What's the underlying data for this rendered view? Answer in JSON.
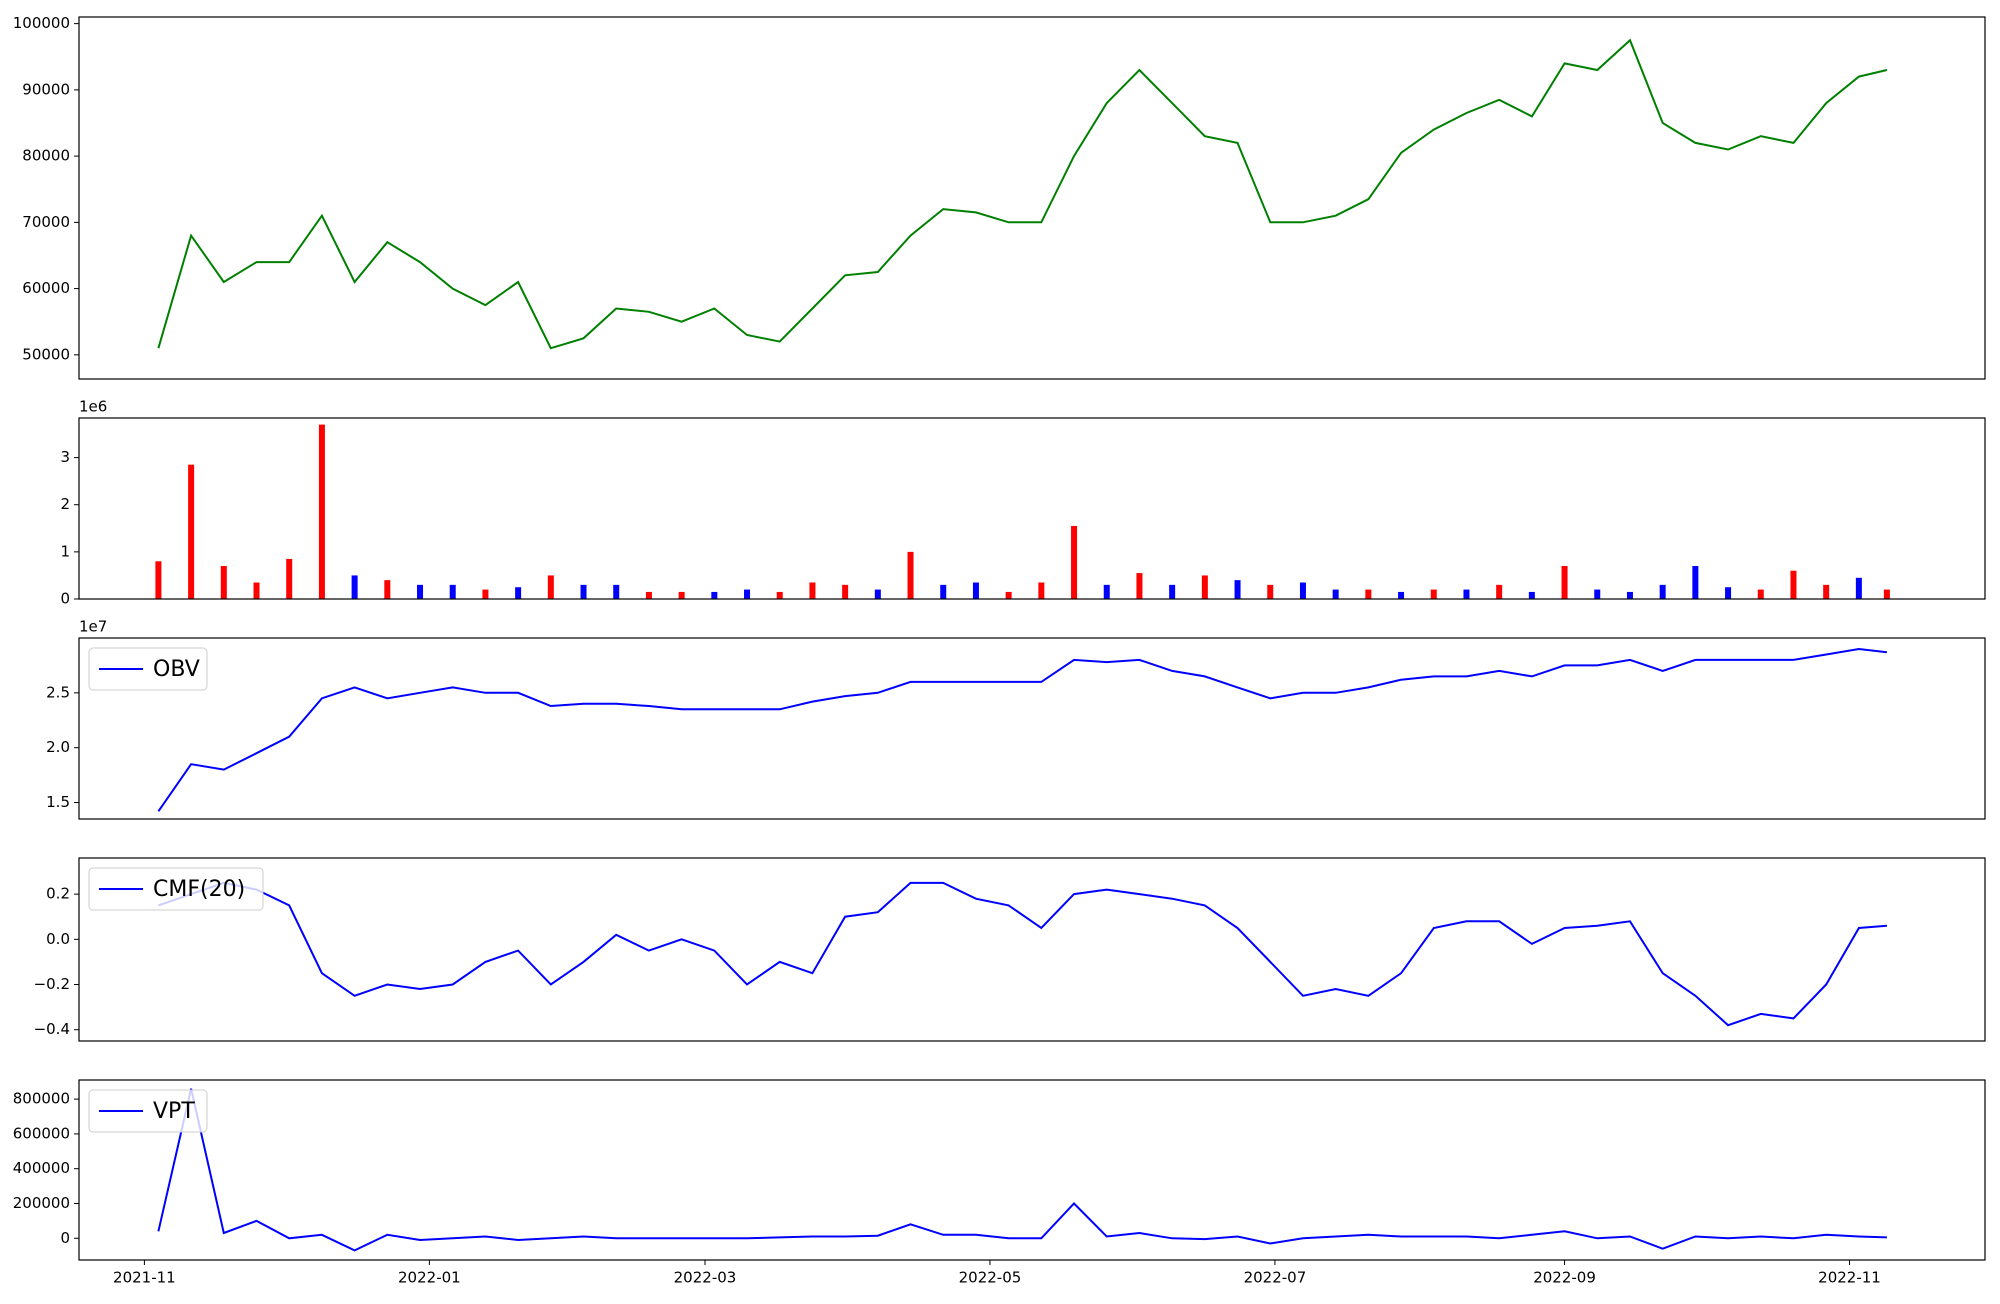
{
  "chart_data": {
    "x": [
      "2021-11-04",
      "2021-11-11",
      "2021-11-18",
      "2021-11-25",
      "2021-12-02",
      "2021-12-09",
      "2021-12-16",
      "2021-12-23",
      "2021-12-30",
      "2022-01-06",
      "2022-01-13",
      "2022-01-20",
      "2022-01-27",
      "2022-02-03",
      "2022-02-10",
      "2022-02-17",
      "2022-02-24",
      "2022-03-03",
      "2022-03-10",
      "2022-03-17",
      "2022-03-24",
      "2022-03-31",
      "2022-04-07",
      "2022-04-14",
      "2022-04-21",
      "2022-04-28",
      "2022-05-05",
      "2022-05-12",
      "2022-05-19",
      "2022-05-26",
      "2022-06-02",
      "2022-06-09",
      "2022-06-16",
      "2022-06-23",
      "2022-06-30",
      "2022-07-07",
      "2022-07-14",
      "2022-07-21",
      "2022-07-28",
      "2022-08-04",
      "2022-08-11",
      "2022-08-18",
      "2022-08-25",
      "2022-09-01",
      "2022-09-08",
      "2022-09-15",
      "2022-09-22",
      "2022-09-29",
      "2022-10-06",
      "2022-10-13",
      "2022-10-20",
      "2022-10-27",
      "2022-11-03",
      "2022-11-09"
    ],
    "xlim": [
      "2021-10-18",
      "2022-11-30"
    ],
    "xticks": [
      {
        "value": "2021-11-01",
        "label": "2021-11"
      },
      {
        "value": "2022-01-01",
        "label": "2022-01"
      },
      {
        "value": "2022-03-01",
        "label": "2022-03"
      },
      {
        "value": "2022-05-01",
        "label": "2022-05"
      },
      {
        "value": "2022-07-01",
        "label": "2022-07"
      },
      {
        "value": "2022-09-01",
        "label": "2022-09"
      },
      {
        "value": "2022-11-01",
        "label": "2022-11"
      }
    ],
    "panels": [
      {
        "type": "line",
        "ylim": [
          46350,
          101000
        ],
        "yticks": [
          50000,
          60000,
          70000,
          80000,
          90000,
          100000
        ],
        "series": [
          {
            "color": "#008000",
            "values": [
              51000,
              68000,
              61000,
              64000,
              64000,
              71000,
              61000,
              67000,
              64000,
              60000,
              57500,
              61000,
              51000,
              52500,
              57000,
              56500,
              55000,
              57000,
              53000,
              52000,
              57000,
              62000,
              62500,
              68000,
              72000,
              71500,
              70000,
              70000,
              80000,
              88000,
              93000,
              88000,
              83000,
              82000,
              70000,
              70000,
              71000,
              73500,
              80500,
              84000,
              86500,
              88500,
              86000,
              94000,
              93000,
              97500,
              85000,
              82000,
              81000,
              83000,
              82000,
              88000,
              92000,
              93000
            ]
          }
        ]
      },
      {
        "type": "bar",
        "ylim": [
          0,
          3.84
        ],
        "yticks": [
          0,
          1,
          2,
          3
        ],
        "offset_label": "1e6",
        "values": [
          0.8,
          2.85,
          0.7,
          0.35,
          0.85,
          3.7,
          0.5,
          0.4,
          0.3,
          0.3,
          0.2,
          0.25,
          0.5,
          0.3,
          0.3,
          0.15,
          0.15,
          0.15,
          0.2,
          0.15,
          0.35,
          0.3,
          0.2,
          1.0,
          0.3,
          0.35,
          0.15,
          0.35,
          1.55,
          0.3,
          0.55,
          0.3,
          0.5,
          0.4,
          0.3,
          0.35,
          0.2,
          0.2,
          0.15,
          0.2,
          0.2,
          0.3,
          0.15,
          0.7,
          0.2,
          0.15,
          0.3,
          0.7,
          0.25,
          0.2,
          0.6,
          0.3,
          0.45,
          0.2
        ],
        "colors": [
          "red",
          "red",
          "red",
          "red",
          "red",
          "red",
          "blue",
          "red",
          "blue",
          "blue",
          "red",
          "blue",
          "red",
          "blue",
          "blue",
          "red",
          "red",
          "blue",
          "blue",
          "red",
          "red",
          "red",
          "blue",
          "red",
          "blue",
          "blue",
          "red",
          "red",
          "red",
          "blue",
          "red",
          "blue",
          "red",
          "blue",
          "red",
          "blue",
          "blue",
          "red",
          "blue",
          "red",
          "blue",
          "red",
          "blue",
          "red",
          "blue",
          "blue",
          "blue",
          "blue",
          "blue",
          "red",
          "red",
          "red",
          "blue",
          "red"
        ]
      },
      {
        "type": "line",
        "ylim": [
          1.35,
          3.0
        ],
        "yticks": [
          1.5,
          {
            "value": 2,
            "label": "2.0"
          },
          2.5
        ],
        "offset_label": "1e7",
        "legend": "upper left",
        "series": [
          {
            "name": "OBV",
            "color": "#0000ff",
            "values": [
              1.42,
              1.85,
              1.8,
              1.95,
              2.1,
              2.45,
              2.55,
              2.45,
              2.5,
              2.55,
              2.5,
              2.5,
              2.38,
              2.4,
              2.4,
              2.38,
              2.35,
              2.35,
              2.35,
              2.35,
              2.42,
              2.47,
              2.5,
              2.6,
              2.6,
              2.6,
              2.6,
              2.6,
              2.8,
              2.78,
              2.8,
              2.7,
              2.65,
              2.55,
              2.45,
              2.5,
              2.5,
              2.55,
              2.62,
              2.65,
              2.65,
              2.7,
              2.65,
              2.75,
              2.75,
              2.8,
              2.7,
              2.8,
              2.8,
              2.8,
              2.8,
              2.85,
              2.9,
              2.87
            ]
          }
        ]
      },
      {
        "type": "line",
        "ylim": [
          -0.45,
          0.36
        ],
        "yticks": [
          {
            "value": -0.4,
            "label": "−0.4"
          },
          {
            "value": -0.2,
            "label": "−0.2"
          },
          {
            "value": 0,
            "label": "0.0"
          },
          0.2
        ],
        "legend": "upper left",
        "series": [
          {
            "name": "CMF(20)",
            "color": "#0000ff",
            "values": [
              0.15,
              0.2,
              0.25,
              0.22,
              0.15,
              -0.15,
              -0.25,
              -0.2,
              -0.22,
              -0.2,
              -0.1,
              -0.05,
              -0.2,
              -0.1,
              0.02,
              -0.05,
              0,
              -0.05,
              -0.2,
              -0.1,
              -0.15,
              0.1,
              0.12,
              0.25,
              0.25,
              0.18,
              0.15,
              0.05,
              0.2,
              0.22,
              0.2,
              0.18,
              0.15,
              0.05,
              -0.1,
              -0.25,
              -0.22,
              -0.25,
              -0.15,
              0.05,
              0.08,
              0.08,
              -0.02,
              0.05,
              0.06,
              0.08,
              -0.15,
              -0.25,
              -0.38,
              -0.33,
              -0.35,
              -0.2,
              0.05,
              0.06
            ]
          }
        ]
      },
      {
        "type": "line",
        "ylim": [
          -125000,
          910000
        ],
        "yticks": [
          0,
          200000,
          400000,
          600000,
          800000
        ],
        "legend": "upper left",
        "series": [
          {
            "name": "VPT",
            "color": "#0000ff",
            "values": [
              40000,
              860000,
              30000,
              100000,
              0,
              20000,
              -70000,
              20000,
              -10000,
              0,
              10000,
              -10000,
              0,
              10000,
              0,
              0,
              0,
              0,
              0,
              5000,
              10000,
              10000,
              15000,
              80000,
              20000,
              20000,
              0,
              0,
              200000,
              10000,
              30000,
              0,
              -5000,
              10000,
              -30000,
              0,
              10000,
              20000,
              10000,
              10000,
              10000,
              0,
              20000,
              40000,
              0,
              10000,
              -60000,
              10000,
              0,
              10000,
              0,
              20000,
              10000,
              5000
            ]
          }
        ]
      }
    ]
  }
}
